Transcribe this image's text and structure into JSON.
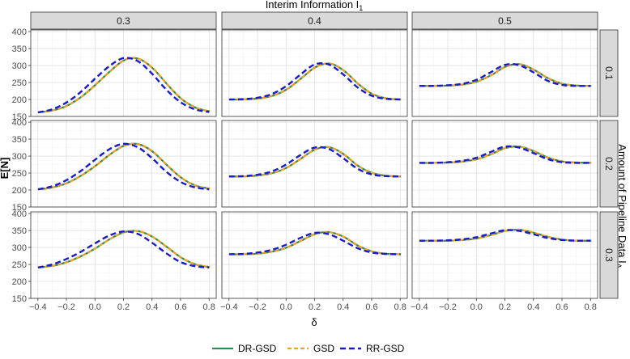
{
  "chart_data": {
    "type": "line",
    "top_strip_title": "Interim Information I",
    "top_strip_title_sub": "1",
    "right_strip_title": "Amount of Pipeline Data I",
    "right_strip_title_sub": "Δ",
    "xlabel": "δ",
    "ylabel": "E[N]",
    "xlim": [
      -0.45,
      0.85
    ],
    "ylim": [
      150,
      405
    ],
    "x_ticks": [
      -0.4,
      -0.2,
      0.0,
      0.2,
      0.4,
      0.6,
      0.8
    ],
    "x_tick_labels": [
      "−0.4",
      "−0.2",
      "0.0",
      "0.2",
      "0.4",
      "0.6",
      "0.8"
    ],
    "y_ticks": [
      150,
      200,
      250,
      300,
      350,
      400
    ],
    "y_tick_labels": [
      "150",
      "200",
      "250",
      "300",
      "350",
      "400"
    ],
    "col_facets": [
      "0.3",
      "0.4",
      "0.5"
    ],
    "row_facets": [
      "0.1",
      "0.2",
      "0.3"
    ],
    "x": [
      -0.4,
      -0.3,
      -0.2,
      -0.1,
      0.0,
      0.1,
      0.2,
      0.3,
      0.4,
      0.5,
      0.6,
      0.7,
      0.8
    ],
    "panels": [
      {
        "col": "0.3",
        "row": "0.1",
        "series": {
          "DR-GSD": [
            162,
            168,
            182,
            208,
            244,
            283,
            316,
            320,
            292,
            245,
            202,
            176,
            165
          ],
          "GSD": [
            162,
            168,
            182,
            208,
            244,
            283,
            316,
            320,
            292,
            245,
            202,
            176,
            165
          ],
          "RR-GSD": [
            162,
            171,
            191,
            222,
            261,
            298,
            322,
            313,
            276,
            229,
            192,
            171,
            163
          ]
        }
      },
      {
        "col": "0.4",
        "row": "0.1",
        "series": {
          "DR-GSD": [
            200,
            200,
            203,
            211,
            230,
            262,
            295,
            306,
            285,
            246,
            216,
            203,
            200
          ],
          "GSD": [
            200,
            200,
            203,
            211,
            230,
            262,
            295,
            306,
            285,
            246,
            216,
            203,
            200
          ],
          "RR-GSD": [
            200,
            201,
            205,
            216,
            239,
            273,
            303,
            303,
            274,
            236,
            211,
            202,
            200
          ]
        }
      },
      {
        "col": "0.5",
        "row": "0.1",
        "series": {
          "DR-GSD": [
            240,
            240,
            241,
            244,
            253,
            272,
            297,
            304,
            287,
            262,
            246,
            241,
            240
          ],
          "GSD": [
            240,
            240,
            241,
            244,
            253,
            272,
            297,
            304,
            287,
            262,
            246,
            241,
            240
          ],
          "RR-GSD": [
            240,
            240,
            242,
            246,
            258,
            280,
            302,
            301,
            280,
            255,
            243,
            240,
            240
          ]
        }
      },
      {
        "col": "0.3",
        "row": "0.2",
        "series": {
          "DR-GSD": [
            202,
            208,
            221,
            243,
            272,
            305,
            331,
            335,
            313,
            273,
            236,
            213,
            204
          ],
          "GSD": [
            202,
            208,
            221,
            243,
            272,
            305,
            331,
            335,
            313,
            273,
            236,
            213,
            204
          ],
          "RR-GSD": [
            202,
            211,
            229,
            256,
            289,
            320,
            336,
            326,
            294,
            254,
            224,
            208,
            202
          ]
        }
      },
      {
        "col": "0.4",
        "row": "0.2",
        "series": {
          "DR-GSD": [
            240,
            240,
            243,
            250,
            266,
            293,
            320,
            326,
            305,
            271,
            250,
            242,
            240
          ],
          "GSD": [
            240,
            240,
            243,
            250,
            266,
            293,
            320,
            326,
            305,
            271,
            250,
            242,
            240
          ],
          "RR-GSD": [
            240,
            241,
            245,
            255,
            275,
            303,
            325,
            321,
            294,
            263,
            246,
            241,
            240
          ]
        }
      },
      {
        "col": "0.5",
        "row": "0.2",
        "series": {
          "DR-GSD": [
            280,
            280,
            281,
            284,
            291,
            306,
            324,
            328,
            314,
            295,
            284,
            281,
            280
          ],
          "GSD": [
            280,
            280,
            281,
            284,
            291,
            306,
            324,
            328,
            314,
            295,
            284,
            281,
            280
          ],
          "RR-GSD": [
            280,
            280,
            282,
            286,
            295,
            312,
            328,
            325,
            309,
            291,
            282,
            280,
            280
          ]
        }
      },
      {
        "col": "0.3",
        "row": "0.3",
        "series": {
          "DR-GSD": [
            241,
            246,
            257,
            275,
            298,
            325,
            345,
            348,
            331,
            301,
            270,
            250,
            242
          ],
          "GSD": [
            241,
            246,
            257,
            275,
            298,
            325,
            345,
            348,
            331,
            301,
            270,
            250,
            242
          ],
          "RR-GSD": [
            241,
            250,
            266,
            287,
            312,
            335,
            347,
            340,
            314,
            283,
            257,
            245,
            241
          ]
        }
      },
      {
        "col": "0.4",
        "row": "0.3",
        "series": {
          "DR-GSD": [
            280,
            280,
            282,
            288,
            300,
            320,
            340,
            345,
            331,
            305,
            288,
            281,
            280
          ],
          "GSD": [
            280,
            280,
            282,
            288,
            300,
            320,
            340,
            345,
            331,
            305,
            288,
            281,
            280
          ],
          "RR-GSD": [
            280,
            281,
            285,
            293,
            308,
            328,
            343,
            339,
            320,
            298,
            285,
            281,
            280
          ]
        }
      },
      {
        "col": "0.5",
        "row": "0.3",
        "series": {
          "DR-GSD": [
            320,
            320,
            320,
            322,
            327,
            337,
            349,
            352,
            343,
            331,
            323,
            320,
            320
          ],
          "GSD": [
            320,
            320,
            320,
            322,
            327,
            337,
            349,
            352,
            343,
            331,
            323,
            320,
            320
          ],
          "RR-GSD": [
            320,
            320,
            321,
            324,
            330,
            341,
            351,
            349,
            339,
            328,
            322,
            320,
            320
          ]
        }
      }
    ],
    "legend": {
      "placement": "bottom",
      "entries": [
        "DR-GSD",
        "GSD",
        "RR-GSD"
      ]
    },
    "colors": {
      "DR-GSD": "#2e8b57",
      "GSD": "#f0a020",
      "RR-GSD": "#1a1acc"
    },
    "grid": true
  }
}
